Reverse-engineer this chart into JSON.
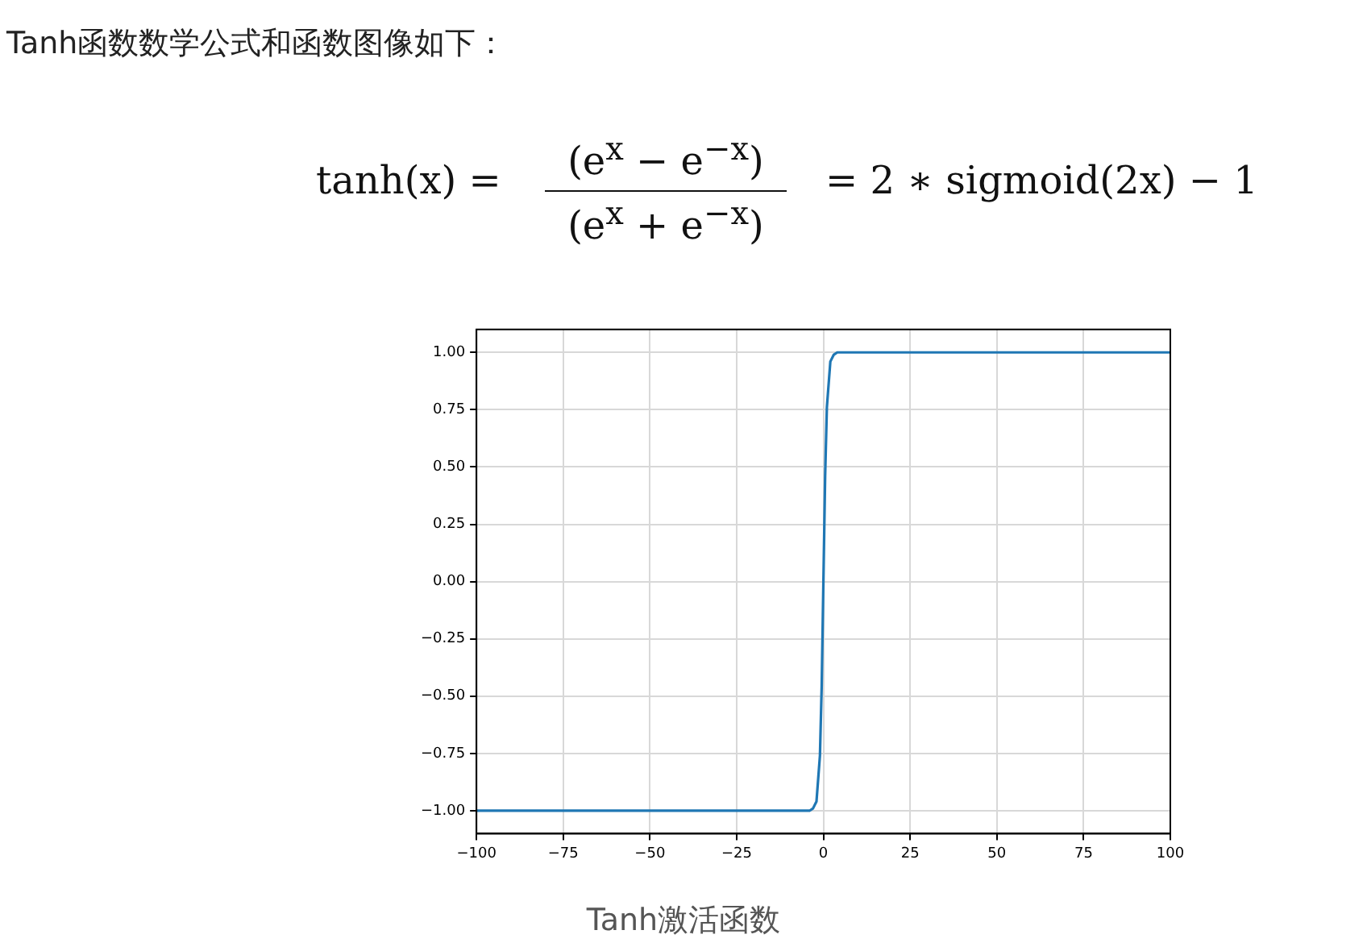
{
  "chart_data": {
    "type": "line",
    "title": "Tanh函数数学公式和函数图像如下：",
    "annotations": [
      "tanh(x) =",
      "(e$^{x}$ − e$^{−x}$)",
      "(e$^{x}$ + e$^{−x}$)",
      "= 2 ∗ sigmoid(2x) − 1",
      "Tanh激活函数"
    ],
    "x": [
      -100,
      -50,
      -10,
      -5,
      -4,
      -3,
      -2,
      -1,
      -0.5,
      0,
      0.5,
      1,
      2,
      3,
      4,
      5,
      10,
      50,
      100
    ],
    "series": [
      {
        "color": "#1f77b4",
        "values": [
          -1,
          -1,
          -1,
          -1,
          -1,
          -0.99,
          -0.96,
          -0.76,
          -0.46,
          0,
          0.46,
          0.76,
          0.96,
          0.99,
          1,
          1,
          1,
          1,
          1
        ]
      }
    ],
    "xlim": [
      -100,
      100
    ],
    "xticks": [
      {
        "value": -100,
        "label": "−100"
      },
      {
        "value": -75,
        "label": "−75"
      },
      {
        "value": -50,
        "label": "−50"
      },
      {
        "value": -25,
        "label": "−25"
      },
      0,
      25,
      50,
      75,
      100
    ],
    "ylim": [
      -1.1,
      1.1
    ],
    "yticks": [
      {
        "value": -1,
        "label": "−1.00"
      },
      {
        "value": -0.75,
        "label": "−0.75"
      },
      {
        "value": -0.5,
        "label": "−0.50"
      },
      {
        "value": -0.25,
        "label": "−0.25"
      },
      {
        "value": 0,
        "label": "0.00"
      },
      {
        "value": 0.25,
        "label": "0.25"
      },
      {
        "value": 0.5,
        "label": "0.50"
      },
      {
        "value": 0.75,
        "label": "0.75"
      },
      {
        "value": 1,
        "label": "1.00"
      }
    ],
    "grid": true,
    "line_style": "solid",
    "marker": "none",
    "legend": false
  }
}
